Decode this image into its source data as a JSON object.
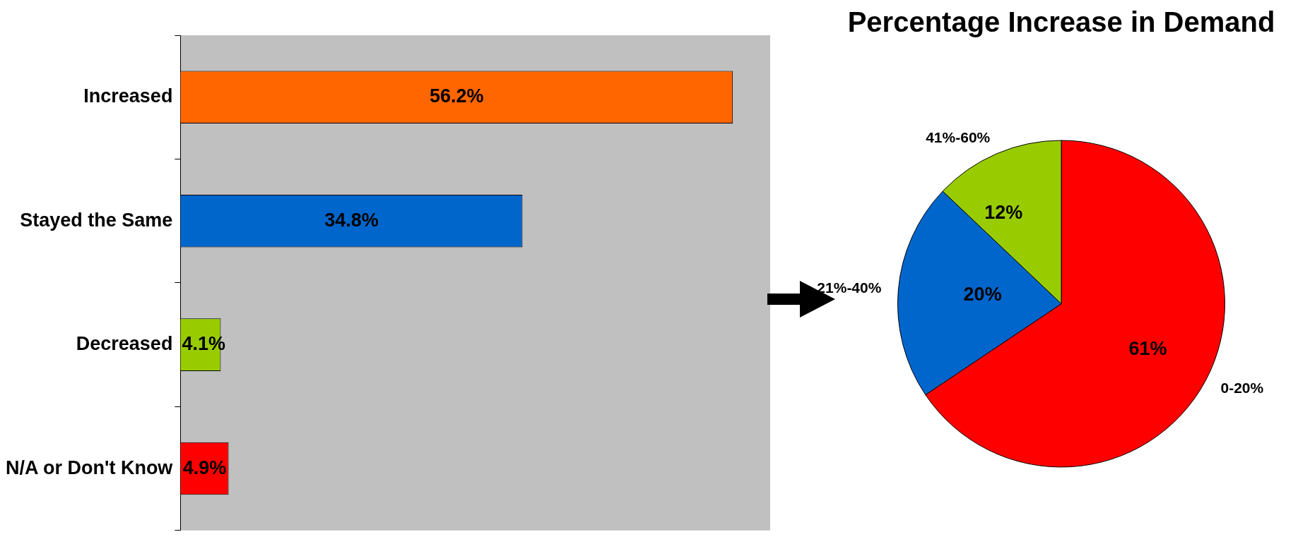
{
  "chart_data": [
    {
      "type": "bar",
      "orientation": "horizontal",
      "categories": [
        "Increased",
        "Stayed the Same",
        "Decreased",
        "N/A or Don't Know"
      ],
      "values": [
        56.2,
        34.8,
        4.1,
        4.9
      ],
      "colors": [
        "#ff6600",
        "#0066cc",
        "#99cc00",
        "#ff0000"
      ],
      "value_labels": [
        "56.2%",
        "34.8%",
        "4.1%",
        "4.9%"
      ],
      "grid": false,
      "legend": false,
      "tick_labels": "y"
    },
    {
      "type": "pie",
      "title": "Percentage Increase in Demand",
      "categories": [
        "0-20%",
        "21%-40%",
        "41%-60%"
      ],
      "values": [
        61,
        20,
        12
      ],
      "colors": [
        "#ff0000",
        "#0066cc",
        "#99cc00"
      ],
      "value_labels": [
        "61%",
        "20%",
        "12%"
      ],
      "legend": false
    }
  ]
}
